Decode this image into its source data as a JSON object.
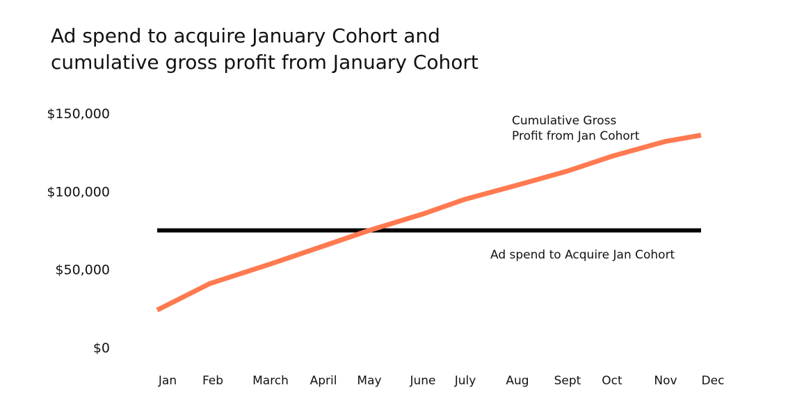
{
  "chart_data": {
    "type": "line",
    "title_lines": [
      "Ad spend to acquire January Cohort and",
      "cumulative gross profit from January Cohort"
    ],
    "xlabel": "",
    "ylabel": "",
    "categories": [
      "Jan",
      "Feb",
      "March",
      "April",
      "May",
      "June",
      "July",
      "Aug",
      "Sept",
      "Oct",
      "Nov",
      "Dec"
    ],
    "yticks": [
      {
        "value": 0,
        "label": "$0"
      },
      {
        "value": 50000,
        "label": "$50,000"
      },
      {
        "value": 100000,
        "label": "$100,000"
      },
      {
        "value": 150000,
        "label": "$150,000"
      }
    ],
    "ylim": [
      0,
      150000
    ],
    "grid": false,
    "legend": "none",
    "series": [
      {
        "name": "Cumulative Gross Profit from Jan Cohort",
        "label_lines": [
          "Cumulative Gross",
          "Profit from Jan Cohort"
        ],
        "color": "#FF7A50",
        "values": [
          24000,
          41000,
          53500,
          65000,
          75000,
          85500,
          95000,
          104000,
          113000,
          122500,
          132000,
          136000
        ]
      },
      {
        "name": "Ad spend to Acquire Jan Cohort",
        "label_lines": [
          "Ad spend to Acquire Jan Cohort"
        ],
        "color": "#000000",
        "values": [
          75000,
          75000,
          75000,
          75000,
          75000,
          75000,
          75000,
          75000,
          75000,
          75000,
          75000,
          75000
        ]
      }
    ]
  }
}
